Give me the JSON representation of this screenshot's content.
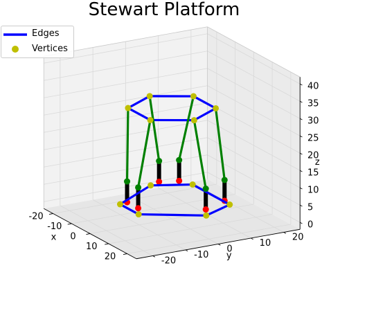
{
  "chart_data": {
    "type": "3d-wireframe",
    "title": "Stewart Platform",
    "xlabel": "x",
    "ylabel": "y",
    "zlabel": "z",
    "xlim": [
      -25,
      25
    ],
    "ylim": [
      -25,
      25
    ],
    "zlim": [
      -2,
      42
    ],
    "x_ticks": [
      "-20",
      "-10",
      "0",
      "10",
      "20"
    ],
    "y_ticks": [
      "-20",
      "-10",
      "0",
      "10",
      "20"
    ],
    "z_ticks": [
      "0",
      "5",
      "10",
      "15",
      "20",
      "25",
      "30",
      "35",
      "40"
    ],
    "grid": true,
    "legend": {
      "position": "top-left",
      "entries": [
        {
          "label": "Edges",
          "color": "#0000ff",
          "marker": "line"
        },
        {
          "label": "Vertices",
          "color": "#bfbf00",
          "marker": "dot"
        }
      ]
    },
    "base_vertices": [
      [
        -15,
        2,
        3
      ],
      [
        -10,
        12,
        3
      ],
      [
        10,
        12,
        3
      ],
      [
        15,
        2,
        3
      ],
      [
        5,
        -13,
        3
      ],
      [
        -5,
        -13,
        3
      ]
    ],
    "platform_vertices": [
      [
        -12,
        0,
        30
      ],
      [
        -6,
        10,
        30
      ],
      [
        6,
        10,
        30
      ],
      [
        12,
        0,
        30
      ],
      [
        6,
        -10,
        30
      ],
      [
        -6,
        -10,
        30
      ]
    ],
    "base_anchors": [
      [
        -14,
        4,
        10
      ],
      [
        -12,
        9,
        10
      ],
      [
        9,
        11,
        10
      ],
      [
        13,
        3,
        10
      ],
      [
        3,
        -12,
        10
      ],
      [
        -3,
        -12,
        10
      ]
    ],
    "legs": [
      {
        "from": [
          -14,
          4,
          10
        ],
        "to": [
          -12,
          0,
          30
        ]
      },
      {
        "from": [
          -12,
          9,
          10
        ],
        "to": [
          -6,
          10,
          30
        ]
      },
      {
        "from": [
          -3,
          -12,
          10
        ],
        "to": [
          -6,
          -10,
          30
        ]
      },
      {
        "from": [
          9,
          11,
          10
        ],
        "to": [
          6,
          10,
          30
        ]
      },
      {
        "from": [
          13,
          3,
          10
        ],
        "to": [
          12,
          0,
          30
        ]
      },
      {
        "from": [
          3,
          -12,
          10
        ],
        "to": [
          6,
          -10,
          30
        ]
      }
    ],
    "actuator_height": 6,
    "colors": {
      "edges": "#0000ff",
      "vertices": "#bfbf00",
      "legs": "#008000",
      "actuators": "#000000",
      "joints": "#ff0000",
      "pane": "#f2f2f2",
      "grid": "#d9d9d9"
    }
  }
}
